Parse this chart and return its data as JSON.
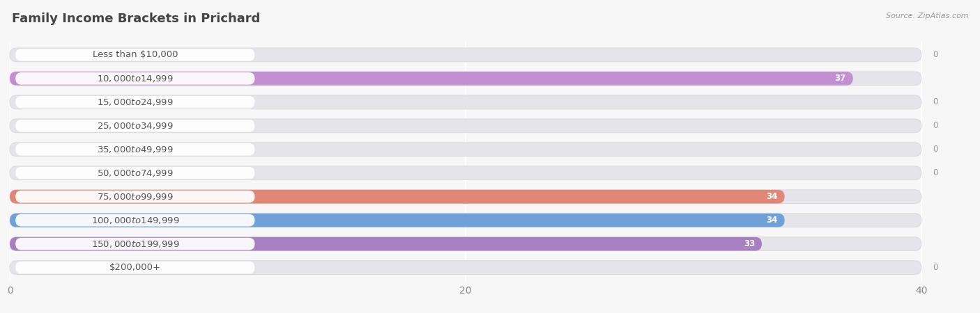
{
  "title": "Family Income Brackets in Prichard",
  "source": "Source: ZipAtlas.com",
  "categories": [
    "Less than $10,000",
    "$10,000 to $14,999",
    "$15,000 to $24,999",
    "$25,000 to $34,999",
    "$35,000 to $49,999",
    "$50,000 to $74,999",
    "$75,000 to $99,999",
    "$100,000 to $149,999",
    "$150,000 to $199,999",
    "$200,000+"
  ],
  "values": [
    0,
    37,
    0,
    0,
    0,
    0,
    34,
    34,
    33,
    0
  ],
  "bar_colors": [
    "#a8c8e8",
    "#c090d0",
    "#7ecec8",
    "#b8b8e8",
    "#f0a8b8",
    "#f0cc98",
    "#e08878",
    "#70a0d8",
    "#a880c0",
    "#80ccd8"
  ],
  "xlim": [
    0,
    40
  ],
  "xticks": [
    0,
    20,
    40
  ],
  "background_color": "#f7f7f7",
  "bar_bg_color": "#e4e4ea",
  "title_fontsize": 13,
  "label_fontsize": 9.5,
  "value_fontsize": 8.5,
  "tick_fontsize": 10
}
